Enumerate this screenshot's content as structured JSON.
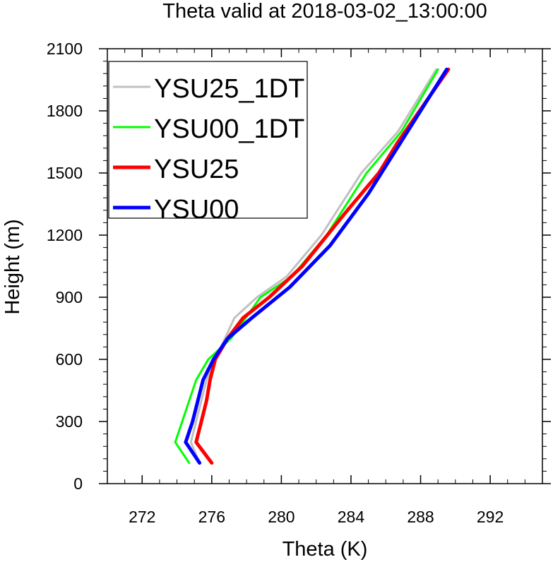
{
  "chart_data": {
    "type": "line",
    "title": "Theta valid at 2018-03-02_13:00:00",
    "xlabel": "Theta (K)",
    "ylabel": "Height (m)",
    "xlim": [
      270,
      295
    ],
    "ylim": [
      0,
      2100
    ],
    "xticks": [
      272,
      276,
      280,
      284,
      288,
      292
    ],
    "yticks": [
      0,
      300,
      600,
      900,
      1200,
      1500,
      1800,
      2100
    ],
    "grid": false,
    "legend_position": "top-left",
    "series": [
      {
        "name": "YSU25_1DT",
        "color": "#c0c0c0",
        "x": [
          275.3,
          274.8,
          275.1,
          275.4,
          275.7,
          276.2,
          277.3,
          278.6,
          280.3,
          282.3,
          284.6,
          286.7,
          288.9
        ],
        "y": [
          100,
          200,
          300,
          400,
          500,
          600,
          800,
          900,
          1000,
          1200,
          1500,
          1700,
          2000
        ]
      },
      {
        "name": "YSU00_1DT",
        "color": "#00ff00",
        "x": [
          274.7,
          273.9,
          274.3,
          274.7,
          275.1,
          275.8,
          277.1,
          278.8,
          280.6,
          282.6,
          284.9,
          286.9,
          289.0
        ],
        "y": [
          100,
          200,
          300,
          400,
          500,
          600,
          700,
          900,
          1000,
          1200,
          1500,
          1700,
          2000
        ]
      },
      {
        "name": "YSU25",
        "color": "#ff0000",
        "x": [
          276.0,
          275.1,
          275.4,
          275.7,
          275.9,
          276.2,
          276.9,
          277.8,
          279.3,
          281.2,
          283.6,
          285.6,
          286.7,
          289.6
        ],
        "y": [
          100,
          200,
          300,
          400,
          500,
          600,
          700,
          800,
          900,
          1050,
          1300,
          1500,
          1650,
          2000
        ]
      },
      {
        "name": "YSU00",
        "color": "#0000ff",
        "x": [
          275.3,
          274.5,
          274.9,
          275.2,
          275.5,
          276.1,
          276.9,
          278.3,
          280.5,
          282.8,
          285.0,
          289.5
        ],
        "y": [
          100,
          200,
          300,
          400,
          500,
          600,
          700,
          800,
          950,
          1150,
          1400,
          2000
        ]
      }
    ]
  }
}
